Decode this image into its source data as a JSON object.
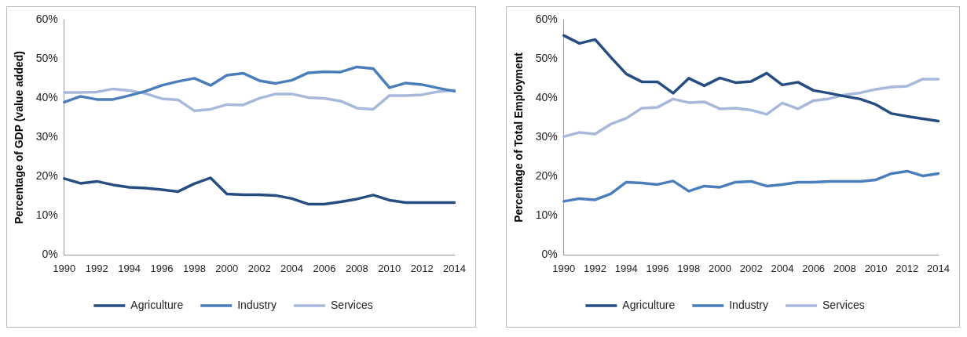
{
  "chart_data": [
    {
      "type": "line",
      "ylabel": "Percentage of GDP (value added)",
      "categories": [
        "1990",
        null,
        "1992",
        null,
        "1994",
        null,
        "1996",
        null,
        "1998",
        null,
        "2000",
        null,
        "2002",
        null,
        "2004",
        null,
        "2006",
        null,
        "2008",
        null,
        "2010",
        null,
        "2012",
        null,
        "2014"
      ],
      "ylim": [
        0,
        60
      ],
      "yticks": [
        {
          "value": 0,
          "label": "0%"
        },
        {
          "value": 10,
          "label": "10%"
        },
        {
          "value": 20,
          "label": "20%"
        },
        {
          "value": 30,
          "label": "30%"
        },
        {
          "value": 40,
          "label": "40%"
        },
        {
          "value": 50,
          "label": "50%"
        },
        {
          "value": 60,
          "label": "60%"
        }
      ],
      "grid": false,
      "legend": "bottom",
      "marker": "none",
      "line_style": "solid",
      "series": [
        {
          "name": "Agriculture",
          "color": "#254d80",
          "values": [
            19.5,
            18.3,
            18.8,
            17.9,
            17.3,
            17.1,
            16.7,
            16.2,
            18.2,
            19.7,
            15.6,
            15.4,
            15.4,
            15.2,
            14.4,
            13.0,
            13.0,
            13.6,
            14.3,
            15.3,
            14.0,
            13.4,
            13.4,
            13.4,
            13.4
          ]
        },
        {
          "name": "Industry",
          "color": "#4a7ebb",
          "values": [
            39.0,
            40.5,
            39.7,
            39.7,
            40.7,
            41.8,
            43.3,
            44.3,
            45.1,
            43.3,
            45.9,
            46.4,
            44.5,
            43.8,
            44.6,
            46.5,
            46.8,
            46.7,
            48.0,
            47.6,
            42.7,
            43.9,
            43.5,
            42.6,
            41.8
          ]
        },
        {
          "name": "Services",
          "color": "#a7b9da",
          "values": [
            41.5,
            41.5,
            41.6,
            42.4,
            42.0,
            41.2,
            39.9,
            39.6,
            36.8,
            37.2,
            38.4,
            38.3,
            40.0,
            41.1,
            41.1,
            40.2,
            40.0,
            39.3,
            37.5,
            37.2,
            40.7,
            40.7,
            40.9,
            41.7,
            42.1
          ]
        }
      ]
    },
    {
      "type": "line",
      "ylabel": "Percentage of Total Employment",
      "categories": [
        "1990",
        null,
        "1992",
        null,
        "1994",
        null,
        "1996",
        null,
        "1998",
        null,
        "2000",
        null,
        "2002",
        null,
        "2004",
        null,
        "2006",
        null,
        "2008",
        null,
        "2010",
        null,
        "2012",
        null,
        "2014"
      ],
      "ylim": [
        0,
        60
      ],
      "yticks": [
        {
          "value": 0,
          "label": "0%"
        },
        {
          "value": 10,
          "label": "10%"
        },
        {
          "value": 20,
          "label": "20%"
        },
        {
          "value": 30,
          "label": "30%"
        },
        {
          "value": 40,
          "label": "40%"
        },
        {
          "value": 50,
          "label": "50%"
        },
        {
          "value": 60,
          "label": "60%"
        }
      ],
      "grid": false,
      "legend": "bottom",
      "marker": "none",
      "line_style": "solid",
      "series": [
        {
          "name": "Agriculture",
          "color": "#254d80",
          "values": [
            56.0,
            54.0,
            55.0,
            50.5,
            46.2,
            44.2,
            44.2,
            41.3,
            45.1,
            43.2,
            45.2,
            44.0,
            44.3,
            46.4,
            43.4,
            44.1,
            42.0,
            41.3,
            40.5,
            39.8,
            38.4,
            36.1,
            35.4,
            34.8,
            34.2
          ]
        },
        {
          "name": "Industry",
          "color": "#4a7ebb",
          "values": [
            13.7,
            14.4,
            14.1,
            15.6,
            18.6,
            18.4,
            18.0,
            18.9,
            16.3,
            17.6,
            17.3,
            18.6,
            18.8,
            17.6,
            18.0,
            18.6,
            18.6,
            18.8,
            18.8,
            18.8,
            19.2,
            20.8,
            21.4,
            20.2,
            20.8
          ]
        },
        {
          "name": "Services",
          "color": "#a7b9da",
          "values": [
            30.2,
            31.3,
            30.9,
            33.4,
            34.9,
            37.5,
            37.7,
            39.8,
            38.9,
            39.1,
            37.3,
            37.5,
            37.0,
            35.9,
            38.8,
            37.3,
            39.4,
            39.9,
            40.9,
            41.4,
            42.3,
            42.9,
            43.1,
            44.9,
            44.9
          ]
        }
      ]
    }
  ]
}
